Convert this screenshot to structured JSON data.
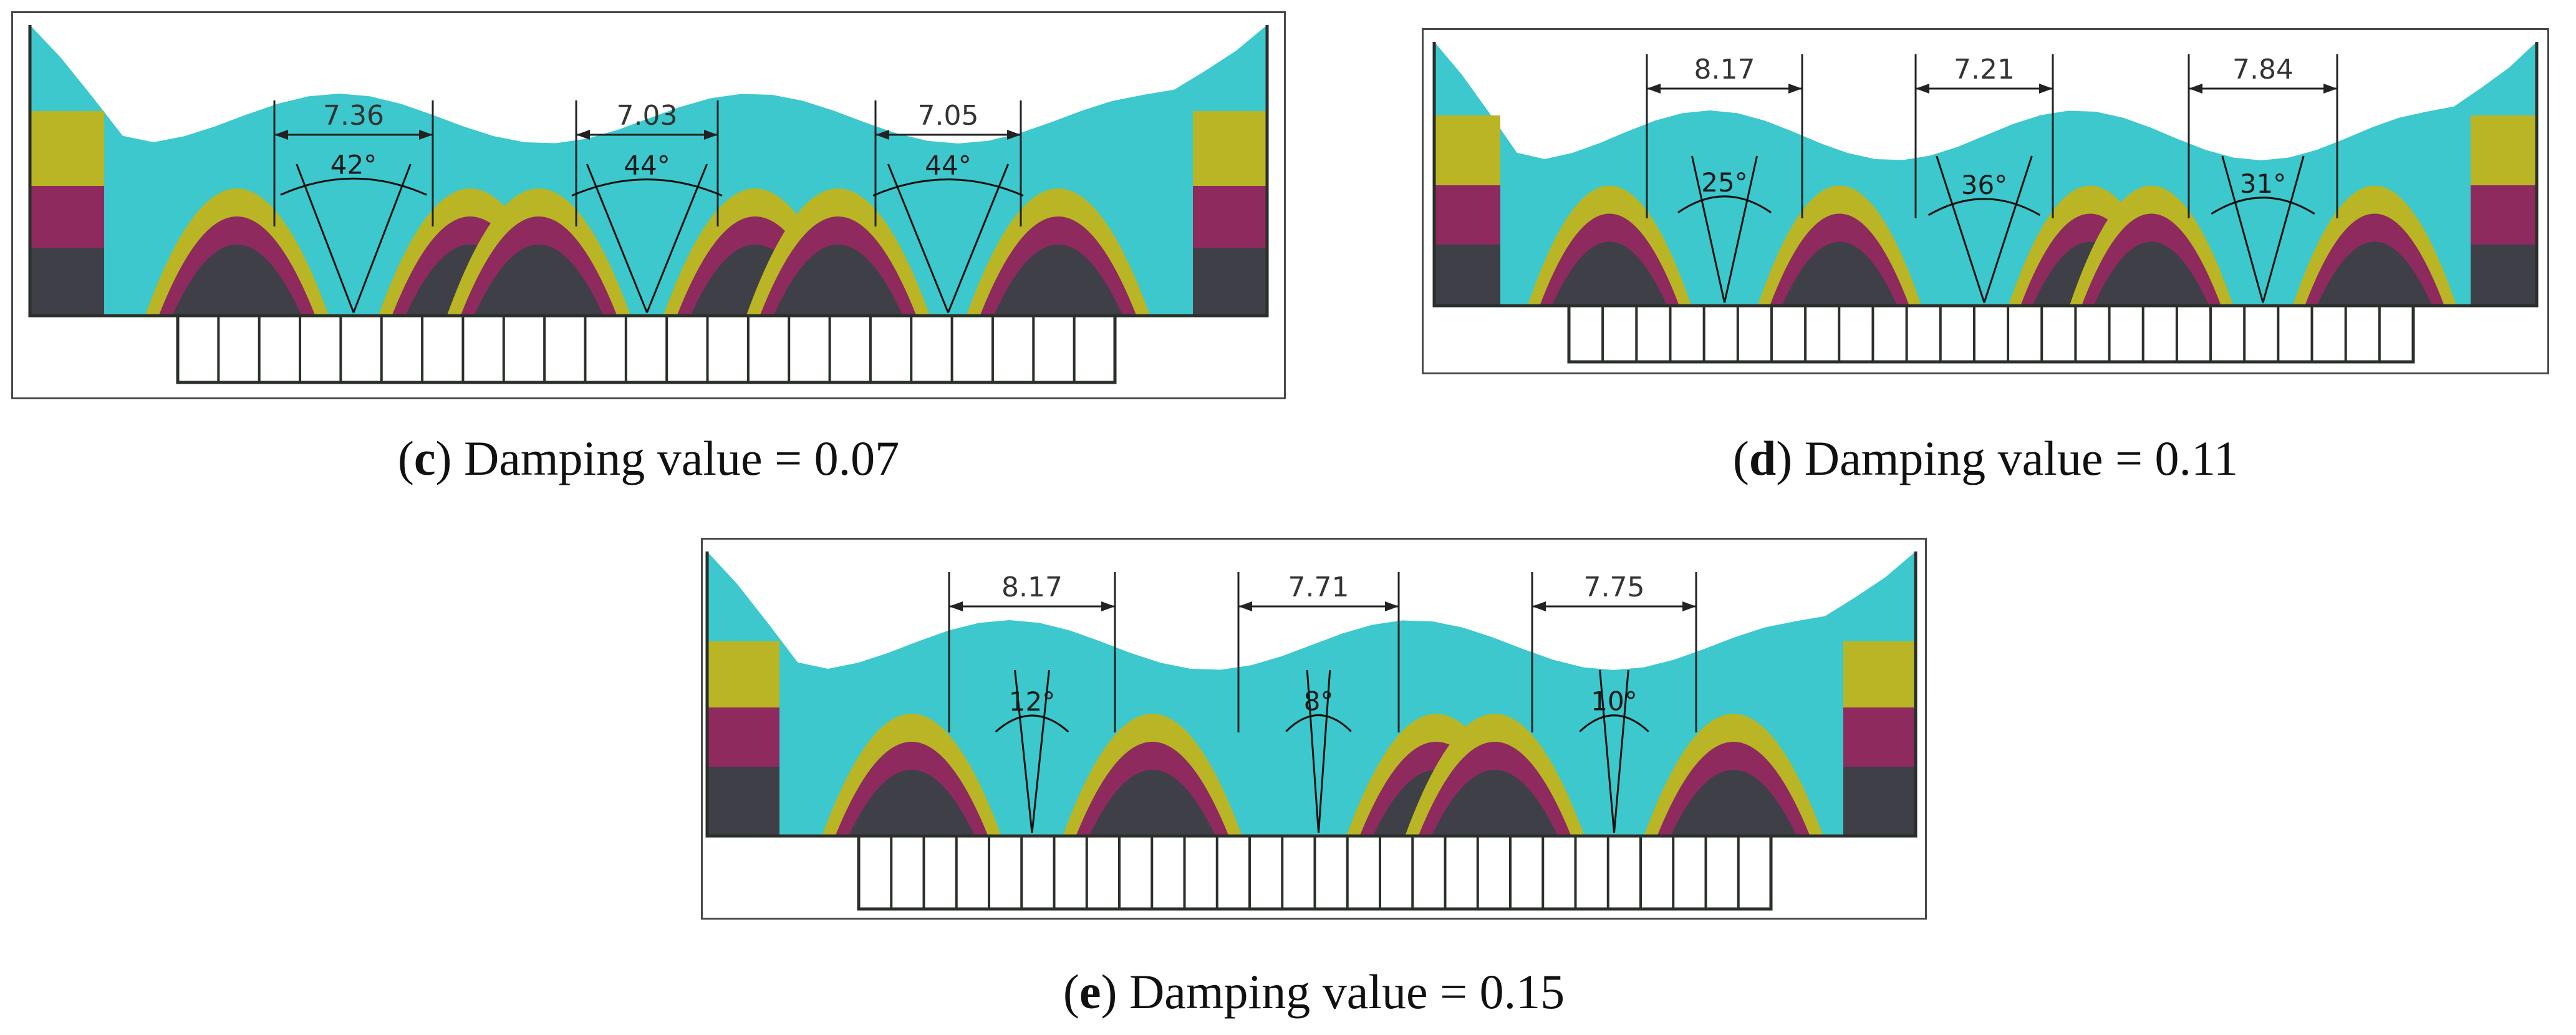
{
  "figure": {
    "colors": {
      "cyan": "#3cc8cc",
      "yellow": "#b9b525",
      "magenta": "#8e2a5e",
      "dark": "#3e3f47",
      "frame": "#2a2f2a"
    },
    "panels": [
      {
        "id": "c",
        "letter": "c",
        "caption": " Damping value = 0.07",
        "open_paren": "(",
        "close_paren": ")",
        "widths": [
          "7.36",
          "7.03",
          "7.05"
        ],
        "angles": [
          "42°",
          "44°",
          "44°"
        ],
        "angle_degrees": [
          42,
          44,
          44
        ]
      },
      {
        "id": "d",
        "letter": "d",
        "caption": " Damping value = 0.11",
        "open_paren": "(",
        "close_paren": ")",
        "widths": [
          "8.17",
          "7.21",
          "7.84"
        ],
        "angles": [
          "25°",
          "36°",
          "31°"
        ],
        "angle_degrees": [
          25,
          36,
          31
        ]
      },
      {
        "id": "e",
        "letter": "e",
        "caption": " Damping value = 0.15",
        "open_paren": "(",
        "close_paren": ")",
        "widths": [
          "8.17",
          "7.71",
          "7.75"
        ],
        "angles": [
          "12°",
          "8°",
          "10°"
        ],
        "angle_degrees": [
          12,
          8,
          10
        ]
      }
    ]
  }
}
